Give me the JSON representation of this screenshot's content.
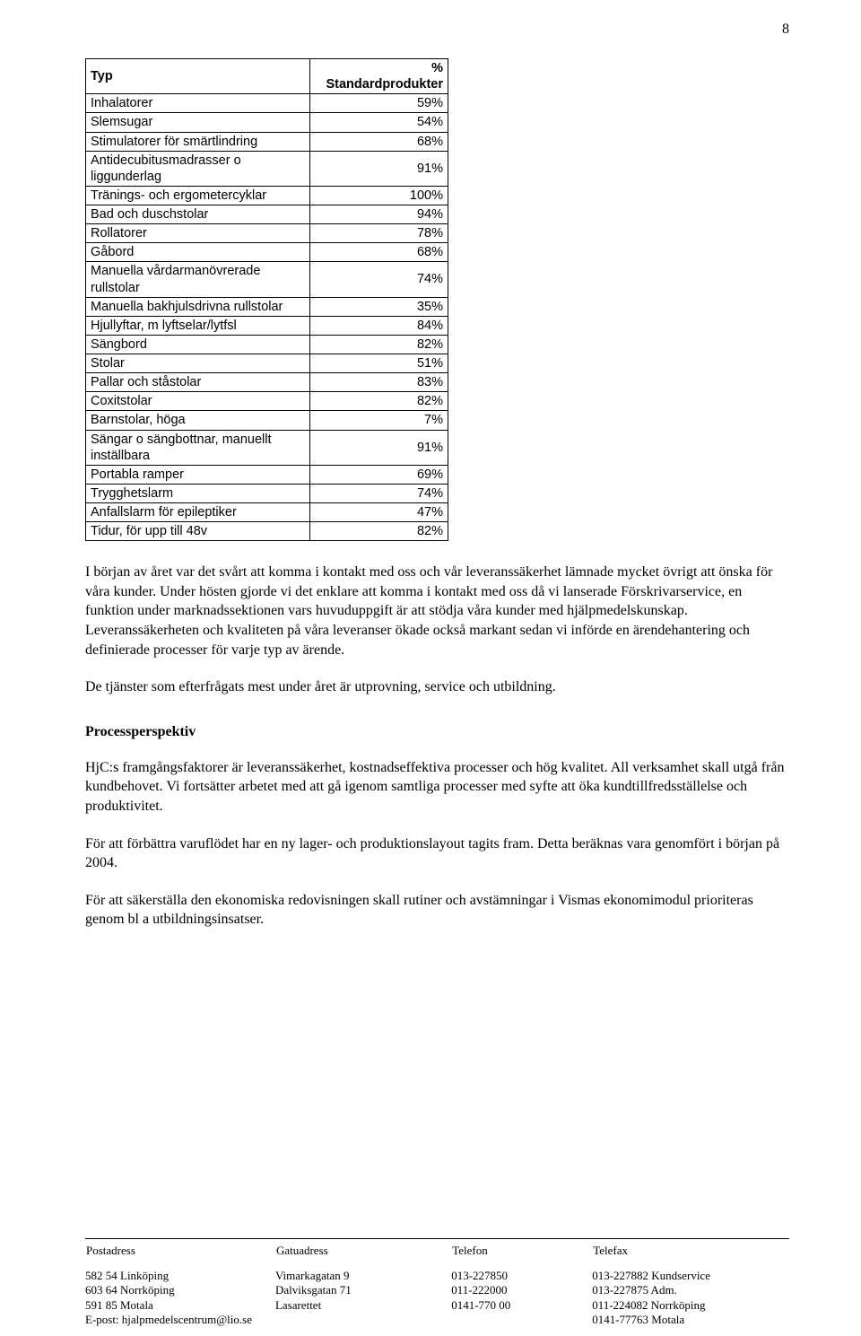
{
  "page_number": "8",
  "table": {
    "header": {
      "col1": "Typ",
      "col2": "% Standardprodukter"
    },
    "rows": [
      {
        "label": "Inhalatorer",
        "value": "59%"
      },
      {
        "label": "Slemsugar",
        "value": "54%"
      },
      {
        "label": "Stimulatorer för smärtlindring",
        "value": "68%"
      },
      {
        "label": "Antidecubitusmadrasser o liggunderlag",
        "value": "91%"
      },
      {
        "label": "Tränings- och ergometercyklar",
        "value": "100%"
      },
      {
        "label": "Bad och duschstolar",
        "value": "94%"
      },
      {
        "label": "Rollatorer",
        "value": "78%"
      },
      {
        "label": "Gåbord",
        "value": "68%"
      },
      {
        "label": "Manuella vårdarmanövrerade rullstolar",
        "value": "74%"
      },
      {
        "label": "Manuella bakhjulsdrivna rullstolar",
        "value": "35%"
      },
      {
        "label": "Hjullyftar, m lyftselar/lytfsl",
        "value": "84%"
      },
      {
        "label": "Sängbord",
        "value": "82%"
      },
      {
        "label": "Stolar",
        "value": "51%"
      },
      {
        "label": "Pallar och ståstolar",
        "value": "83%"
      },
      {
        "label": "Coxitstolar",
        "value": "82%"
      },
      {
        "label": "Barnstolar, höga",
        "value": "7%"
      },
      {
        "label": "Sängar o sängbottnar, manuellt inställbara",
        "value": "91%"
      },
      {
        "label": "Portabla ramper",
        "value": "69%"
      },
      {
        "label": "Trygghetslarm",
        "value": "74%"
      },
      {
        "label": "Anfallslarm för epileptiker",
        "value": "47%"
      },
      {
        "label": "Tidur, för upp till 48v",
        "value": "82%"
      }
    ]
  },
  "paragraphs": {
    "p1": "I början av året var det svårt att komma i kontakt med oss och vår leveranssäkerhet lämnade mycket övrigt att önska för våra kunder. Under hösten gjorde vi det enklare att komma i kontakt med oss då vi lanserade Förskrivarservice, en funktion under marknadssektionen vars huvuduppgift är att stödja våra kunder med hjälpmedelskunskap. Leveranssäkerheten och kvaliteten på våra leveranser ökade också markant sedan vi införde en ärendehantering och definierade processer för varje typ av ärende.",
    "p2": "De tjänster som efterfrågats mest under året är utprovning, service och utbildning.",
    "section_heading": "Processperspektiv",
    "p3": "HjC:s framgångsfaktorer är leveranssäkerhet, kostnadseffektiva processer och hög kvalitet. All verksamhet skall utgå från kundbehovet. Vi fortsätter arbetet med att gå igenom samtliga processer med syfte att öka kundtillfredsställelse och produktivitet.",
    "p4": "För att förbättra varuflödet har en ny lager- och produktionslayout tagits fram. Detta beräknas vara genomfört i början på 2004.",
    "p5": "För att säkerställa den ekonomiska redovisningen skall rutiner och avstämningar i Vismas ekonomimodul prioriteras genom bl a utbildningsinsatser."
  },
  "footer": {
    "headers": {
      "c1": "Postadress",
      "c2": "Gatuadress",
      "c3": "Telefon",
      "c4": "Telefax"
    },
    "rows": [
      {
        "c1": "582 54 Linköping",
        "c2": "Vimarkagatan 9",
        "c3": "013-227850",
        "c4": "013-227882 Kundservice"
      },
      {
        "c1": "603 64 Norrköping",
        "c2": "Dalviksgatan 71",
        "c3": "011-222000",
        "c4": "013-227875 Adm."
      },
      {
        "c1": "591 85 Motala",
        "c2": "Lasarettet",
        "c3": "0141-770 00",
        "c4": "011-224082 Norrköping"
      },
      {
        "c1": "E-post: hjalpmedelscentrum@lio.se",
        "c2": "",
        "c3": "",
        "c4": "0141-77763 Motala"
      }
    ]
  }
}
